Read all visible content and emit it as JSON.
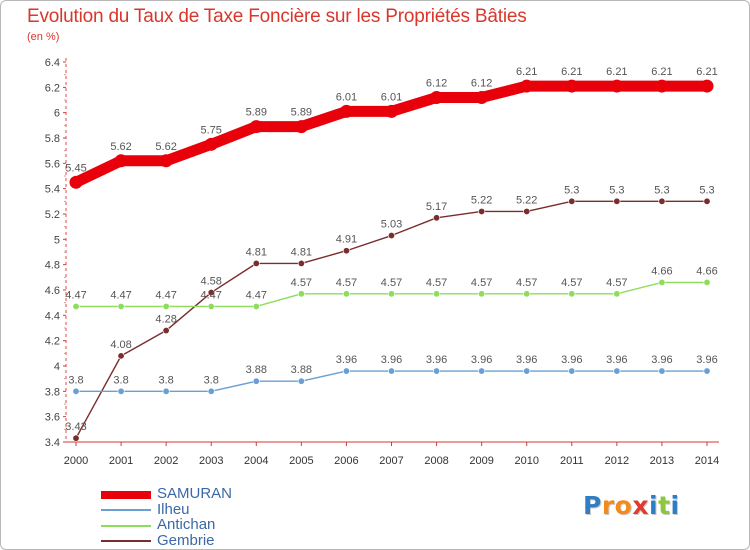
{
  "title": "Evolution du Taux de Taxe Foncière sur les Propriétés Bâties",
  "unit_label": "(en %)",
  "logo": {
    "text": "Proxiti",
    "colors": [
      "#2f7ec4",
      "#f28b1a",
      "#f28b1a",
      "#e23a2f",
      "#2f7ec4",
      "#8ec63f",
      "#2f7ec4"
    ]
  },
  "chart_data": {
    "type": "line",
    "title": "Evolution du Taux de Taxe Foncière sur les Propriétés Bâties",
    "ylabel": "(en %)",
    "xlabel": "",
    "x": [
      "2000",
      "2001",
      "2002",
      "2003",
      "2004",
      "2005",
      "2006",
      "2007",
      "2008",
      "2009",
      "2010",
      "2011",
      "2012",
      "2013",
      "2014"
    ],
    "ylim": [
      3.4,
      6.4
    ],
    "yticks": [
      "3.4",
      "3.6",
      "3.8",
      "4",
      "4.2",
      "4.4",
      "4.6",
      "4.8",
      "5",
      "5.2",
      "5.4",
      "5.6",
      "5.8",
      "6",
      "6.2",
      "6.4"
    ],
    "grid": false,
    "legend_position": "bottom-left",
    "series": [
      {
        "name": "SAMURAN",
        "color": "#e8000b",
        "values": [
          5.45,
          5.62,
          5.62,
          5.75,
          5.89,
          5.89,
          6.01,
          6.01,
          6.12,
          6.12,
          6.21,
          6.21,
          6.21,
          6.21,
          6.21
        ],
        "labels": [
          "5.45",
          "5.62",
          "5.62",
          "5.75",
          "5.89",
          "5.89",
          "6.01",
          "6.01",
          "6.12",
          "6.12",
          "6.21",
          "6.21",
          "6.21",
          "6.21",
          "6.21"
        ]
      },
      {
        "name": "Ilheu",
        "color": "#6a9fd4",
        "values": [
          3.8,
          3.8,
          3.8,
          3.8,
          3.88,
          3.88,
          3.96,
          3.96,
          3.96,
          3.96,
          3.96,
          3.96,
          3.96,
          3.96,
          3.96
        ],
        "labels": [
          "3.8",
          "3.8",
          "3.8",
          "3.8",
          "3.88",
          "3.88",
          "3.96",
          "3.96",
          "3.96",
          "3.96",
          "3.96",
          "3.96",
          "3.96",
          "3.96",
          "3.96"
        ]
      },
      {
        "name": "Antichan",
        "color": "#8edc5c",
        "values": [
          4.47,
          4.47,
          4.47,
          4.47,
          4.47,
          4.57,
          4.57,
          4.57,
          4.57,
          4.57,
          4.57,
          4.57,
          4.57,
          4.66,
          4.66
        ],
        "labels": [
          "4.47",
          "4.47",
          "4.47",
          "4.47",
          "4.47",
          "4.57",
          "4.57",
          "4.57",
          "4.57",
          "4.57",
          "4.57",
          "4.57",
          "4.57",
          "4.66",
          "4.66"
        ]
      },
      {
        "name": "Gembrie",
        "color": "#7a2d2d",
        "values": [
          3.43,
          4.08,
          4.28,
          4.58,
          4.81,
          4.81,
          4.91,
          5.03,
          5.17,
          5.22,
          5.22,
          5.3,
          5.3,
          5.3,
          5.3
        ],
        "labels": [
          "3.43",
          "4.08",
          "4.28",
          "4.58",
          "4.81",
          "4.81",
          "4.91",
          "5.03",
          "5.17",
          "5.22",
          "5.22",
          "5.3",
          "5.3",
          "5.3",
          "5.3"
        ]
      }
    ]
  }
}
